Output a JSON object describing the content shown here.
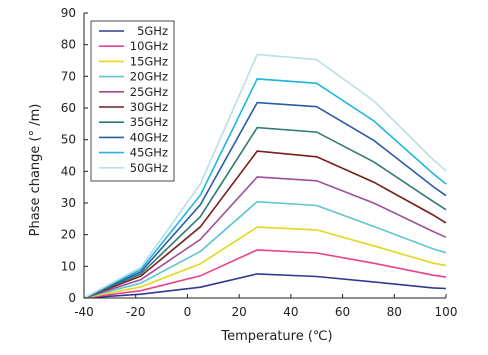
{
  "chart_data": {
    "type": "line",
    "title": "",
    "xlabel": "Temperature (℃)",
    "ylabel": "Phase change (° /m)",
    "x": [
      -40,
      -18,
      5,
      27,
      50,
      72,
      95,
      100
    ],
    "xlim": [
      -40,
      100
    ],
    "ylim": [
      0,
      90
    ],
    "xticks": [
      "-40",
      "-20",
      "0",
      "20",
      "40",
      "60",
      "80",
      "100"
    ],
    "yticks": [
      "0",
      "10",
      "20",
      "30",
      "40",
      "50",
      "60",
      "70",
      "80",
      "90"
    ],
    "grid": false,
    "legend_position": "top-left",
    "series": [
      {
        "name": "5GHz",
        "color": "#2e3a8f",
        "values": [
          0,
          1.2,
          3.4,
          7.6,
          6.8,
          5.1,
          3.2,
          3.0
        ]
      },
      {
        "name": "10GHz",
        "color": "#e8428a",
        "values": [
          0,
          2.3,
          7.0,
          15.2,
          14.2,
          11.0,
          7.2,
          6.6
        ]
      },
      {
        "name": "15GHz",
        "color": "#e2d81c",
        "values": [
          0,
          3.5,
          10.8,
          22.4,
          21.5,
          16.5,
          11.0,
          10.3
        ]
      },
      {
        "name": "20GHz",
        "color": "#5ec6d0",
        "values": [
          0,
          4.7,
          14.7,
          30.4,
          29.2,
          22.6,
          15.5,
          14.3
        ]
      },
      {
        "name": "25GHz",
        "color": "#9d4f9a",
        "values": [
          0,
          5.8,
          18.5,
          38.2,
          37.0,
          30.0,
          21.0,
          19.2
        ]
      },
      {
        "name": "30GHz",
        "color": "#7a1c1e",
        "values": [
          0,
          6.9,
          22.5,
          46.4,
          44.6,
          36.6,
          26.2,
          23.7
        ]
      },
      {
        "name": "35GHz",
        "color": "#2e7b71",
        "values": [
          0,
          7.6,
          25.7,
          53.8,
          52.4,
          43.0,
          30.5,
          27.9
        ]
      },
      {
        "name": "40GHz",
        "color": "#2a5ca8",
        "values": [
          0,
          8.3,
          29.5,
          61.7,
          60.4,
          49.8,
          35.2,
          32.3
        ]
      },
      {
        "name": "45GHz",
        "color": "#1fb7dc",
        "values": [
          0,
          9.0,
          32.5,
          69.2,
          67.8,
          56.0,
          39.3,
          36.0
        ]
      },
      {
        "name": "50GHz",
        "color": "#b9dfe6",
        "values": [
          0,
          9.7,
          36.0,
          76.9,
          75.3,
          62.3,
          43.7,
          40.2
        ]
      }
    ]
  }
}
